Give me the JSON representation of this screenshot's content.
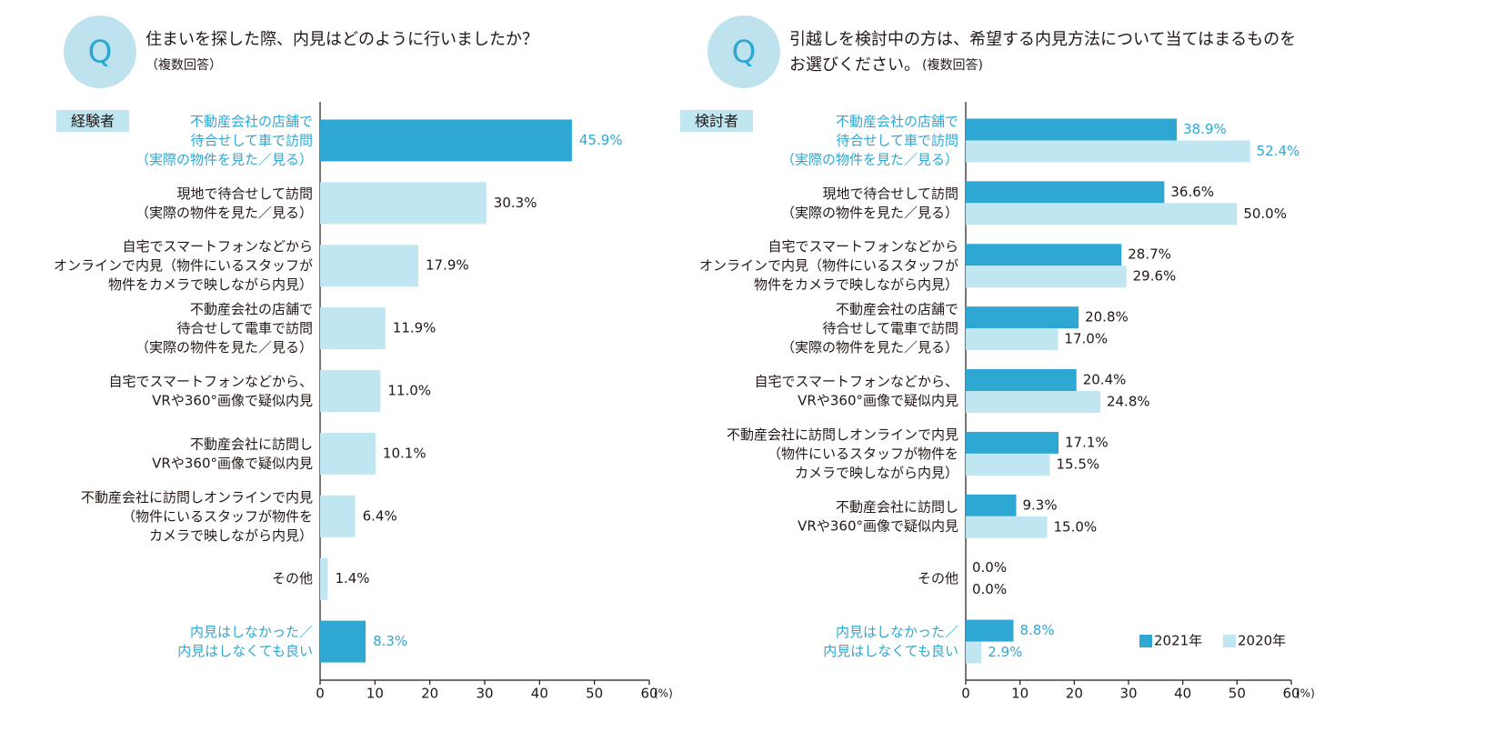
{
  "chart_data": [
    {
      "type": "bar",
      "badge": "Q",
      "title": "住まいを探した際、内見はどのように行いましたか？",
      "subtitle": "（複数回答）",
      "group_label": "経験者",
      "categories": [
        "不動産会社の店舗で\n待合せして車で訪問\n（実際の物件を見た／見る）",
        "現地で待合せして訪問\n（実際の物件を見た／見る）",
        "自宅でスマートフォンなどから\nオンラインで内見（物件にいるスタッフが\n物件をカメラで映しながら内見）",
        "不動産会社の店舗で\n待合せして電車で訪問\n（実際の物件を見た／見る）",
        "自宅でスマートフォンなどから、\nVRや360°画像で疑似内見",
        "不動産会社に訪問し\nVRや360°画像で疑似内見",
        "不動産会社に訪問しオンラインで内見\n（物件にいるスタッフが物件を\nカメラで映しながら内見）",
        "その他",
        "内見はしなかった／\n内見はしなくても良い"
      ],
      "values": [
        45.9,
        30.3,
        17.9,
        11.9,
        11.0,
        10.1,
        6.4,
        1.4,
        8.3
      ],
      "value_labels": [
        "45.9%",
        "30.3%",
        "17.9%",
        "11.9%",
        "11.0%",
        "10.1%",
        "6.4%",
        "1.4%",
        "8.3%"
      ],
      "colors": [
        "#2ea8d2",
        "#bfe6f1",
        "#bfe6f1",
        "#bfe6f1",
        "#bfe6f1",
        "#bfe6f1",
        "#bfe6f1",
        "#bfe6f1",
        "#2ea8d2"
      ],
      "label_colors": [
        "#2ea8d2",
        "#231815",
        "#231815",
        "#231815",
        "#231815",
        "#231815",
        "#231815",
        "#231815",
        "#2ea8d2"
      ],
      "xlim": [
        0,
        60
      ],
      "xticks": [
        0,
        10,
        20,
        30,
        40,
        50,
        60
      ],
      "xlabel": "(%)"
    },
    {
      "type": "grouped-bar",
      "badge": "Q",
      "title": "引越しを検討中の方は、希望する内見方法について当てはまるものを\nお選びください。",
      "subtitle": "(複数回答)",
      "group_label": "検討者",
      "categories": [
        "不動産会社の店舗で\n待合せして車で訪問\n（実際の物件を見た／見る）",
        "現地で待合せして訪問\n（実際の物件を見た／見る）",
        "自宅でスマートフォンなどから\nオンラインで内見（物件にいるスタッフが\n物件をカメラで映しながら内見）",
        "不動産会社の店舗で\n待合せして電車で訪問\n（実際の物件を見た／見る）",
        "自宅でスマートフォンなどから、\nVRや360°画像で疑似内見",
        "不動産会社に訪問しオンラインで内見\n（物件にいるスタッフが物件を\nカメラで映しながら内見）",
        "不動産会社に訪問し\nVRや360°画像で疑似内見",
        "その他",
        "内見はしなかった／\n内見はしなくても良い"
      ],
      "series": [
        {
          "name": "2021年",
          "color": "#2ea8d2",
          "values": [
            38.9,
            36.6,
            28.7,
            20.8,
            20.4,
            17.1,
            9.3,
            0.0,
            8.8
          ],
          "value_labels": [
            "38.9%",
            "36.6%",
            "28.7%",
            "20.8%",
            "20.4%",
            "17.1%",
            "9.3%",
            "0.0%",
            "8.8%"
          ]
        },
        {
          "name": "2020年",
          "color": "#bfe6f1",
          "values": [
            52.4,
            50.0,
            29.6,
            17.0,
            24.8,
            15.5,
            15.0,
            0.0,
            2.9
          ],
          "value_labels": [
            "52.4%",
            "50.0%",
            "29.6%",
            "17.0%",
            "24.8%",
            "15.5%",
            "15.0%",
            "0.0%",
            "2.9%"
          ]
        }
      ],
      "label_colors": [
        "#2ea8d2",
        "#231815",
        "#231815",
        "#231815",
        "#231815",
        "#231815",
        "#231815",
        "#231815",
        "#2ea8d2"
      ],
      "legend": "lower right",
      "xlim": [
        0,
        60
      ],
      "xticks": [
        0,
        10,
        20,
        30,
        40,
        50,
        60
      ],
      "xlabel": "(%)"
    }
  ]
}
